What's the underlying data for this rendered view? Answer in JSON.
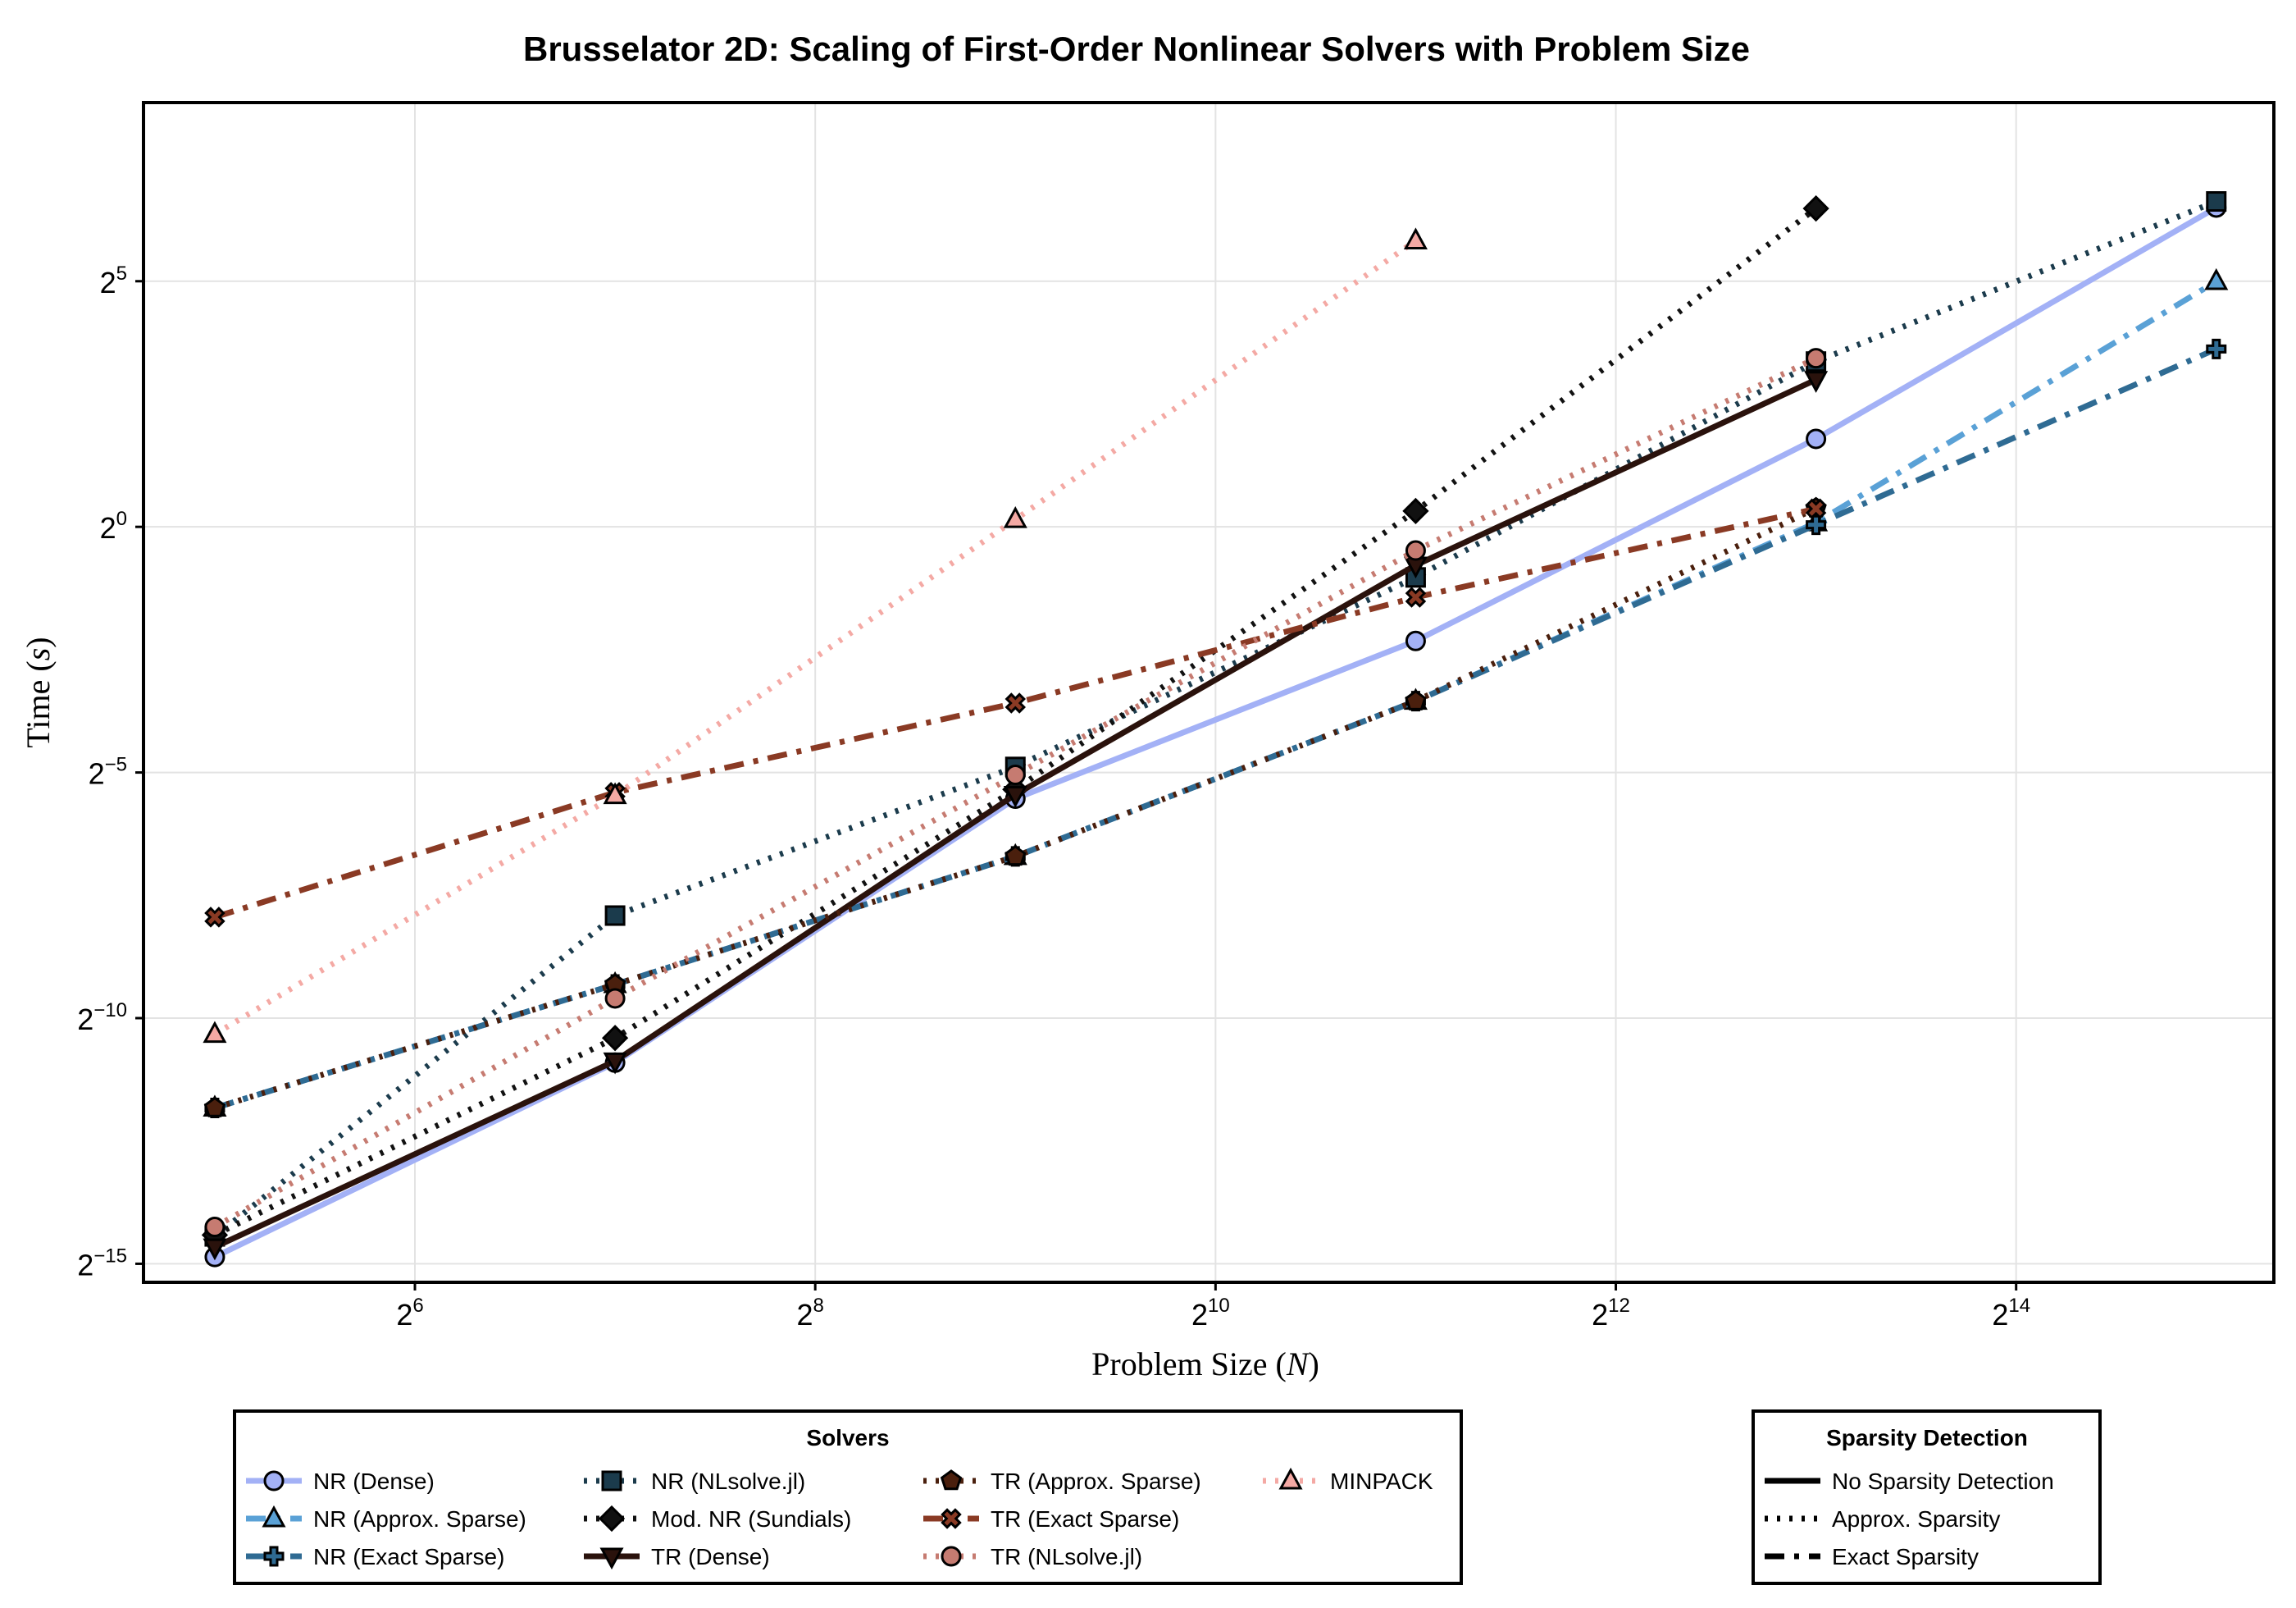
{
  "chart_data": {
    "type": "line",
    "title": "Brusselator 2D: Scaling of First-Order Nonlinear Solvers with Problem Size",
    "xlabel": "Problem Size (N)",
    "xlabel_text": "Problem Size (",
    "xlabel_var": "N",
    "xlabel_close": ")",
    "ylabel": "Time (s)",
    "ylabel_text": "Time (",
    "ylabel_var": "s",
    "ylabel_close": ")",
    "x_scale": "log2",
    "y_scale": "log2",
    "xlim": [
      25,
      40000
    ],
    "ylim": [
      2.35e-05,
      398.0
    ],
    "x_ticks": [
      {
        "base": "2",
        "exp": "6",
        "value": 64
      },
      {
        "base": "2",
        "exp": "8",
        "value": 256
      },
      {
        "base": "2",
        "exp": "10",
        "value": 1024
      },
      {
        "base": "2",
        "exp": "12",
        "value": 4096
      },
      {
        "base": "2",
        "exp": "14",
        "value": 16384
      }
    ],
    "y_ticks": [
      {
        "base": "2",
        "exp": "5",
        "value": 32
      },
      {
        "base": "2",
        "exp": "0",
        "value": 1
      },
      {
        "base": "2",
        "exp": "−5",
        "value": 0.03125
      },
      {
        "base": "2",
        "exp": "−10",
        "value": 0.0009765625
      },
      {
        "base": "2",
        "exp": "−15",
        "value": 3.0517578125e-05
      }
    ],
    "grid": true,
    "series": [
      {
        "name": "NR (Dense)",
        "color": "#a3b1f6",
        "dash": "solid",
        "marker": "circle",
        "x": [
          32,
          128,
          512,
          2048,
          8192,
          32768
        ],
        "y": [
          3.36e-05,
          0.000521,
          0.0216,
          0.2,
          3.46,
          90.5
        ]
      },
      {
        "name": "NR (Approx. Sparse)",
        "color": "#5aa1d6",
        "dash": "dashdot",
        "marker": "triangle",
        "x": [
          32,
          128,
          512,
          2048,
          8192,
          32768
        ],
        "y": [
          0.000275,
          0.00157,
          0.00956,
          0.0855,
          1.06,
          31.9
        ]
      },
      {
        "name": "NR (Exact Sparse)",
        "color": "#2f6b93",
        "dash": "dashdot",
        "marker": "cross",
        "x": [
          32,
          128,
          512,
          2048,
          8192,
          32768
        ],
        "y": [
          0.000275,
          0.00157,
          0.00956,
          0.0855,
          1.03,
          12.3
        ]
      },
      {
        "name": "NR (NLsolve.jl)",
        "color": "#1b3b4c",
        "dash": "dotted",
        "marker": "square",
        "x": [
          32,
          128,
          512,
          2048,
          8192,
          32768
        ],
        "y": [
          4.49e-05,
          0.00415,
          0.0338,
          0.49,
          10.3,
          98.6
        ]
      },
      {
        "name": "Mod. NR (Sundials)",
        "color": "#111111",
        "dash": "dotted",
        "marker": "diamond",
        "x": [
          32,
          128,
          512,
          2048,
          8192
        ],
        "y": [
          4.58e-05,
          0.000738,
          0.0246,
          1.25,
          89.3
        ]
      },
      {
        "name": "TR (Dense)",
        "color": "#2a120c",
        "dash": "solid",
        "marker": "triangle-down",
        "x": [
          32,
          128,
          512,
          2048,
          8192
        ],
        "y": [
          3.86e-05,
          0.000533,
          0.0229,
          0.582,
          7.98
        ]
      },
      {
        "name": "TR (Approx. Sparse)",
        "color": "#4a1f0d",
        "dash": "dotted",
        "marker": "pentagon",
        "x": [
          32,
          128,
          512,
          2048,
          8192
        ],
        "y": [
          0.000275,
          0.00157,
          0.00956,
          0.0855,
          1.3
        ]
      },
      {
        "name": "TR (Exact Sparse)",
        "color": "#8a3a24",
        "dash": "dashdot",
        "marker": "xcross",
        "x": [
          32,
          128,
          512,
          2048,
          8192
        ],
        "y": [
          0.00406,
          0.0236,
          0.0832,
          0.37,
          1.29
        ]
      },
      {
        "name": "TR (NLsolve.jl)",
        "color": "#c67b71",
        "dash": "dotted",
        "marker": "circle",
        "x": [
          32,
          128,
          512,
          2048,
          8192
        ],
        "y": [
          5.13e-05,
          0.00129,
          0.0302,
          0.716,
          10.8
        ]
      },
      {
        "name": "MINPACK",
        "color": "#f4a9a4",
        "dash": "dotted",
        "marker": "triangle",
        "x": [
          32,
          128,
          512,
          2048
        ],
        "y": [
          0.000778,
          0.0226,
          1.11,
          56.6
        ]
      }
    ],
    "legends": [
      {
        "title": "Solvers",
        "placement": "bottom-center"
      },
      {
        "title": "Sparsity Detection",
        "placement": "bottom-right",
        "entries": [
          {
            "label": "No Sparsity Detection",
            "dash": "solid"
          },
          {
            "label": "Approx. Sparsity",
            "dash": "dotted"
          },
          {
            "label": "Exact Sparsity",
            "dash": "dashdot"
          }
        ]
      }
    ]
  }
}
